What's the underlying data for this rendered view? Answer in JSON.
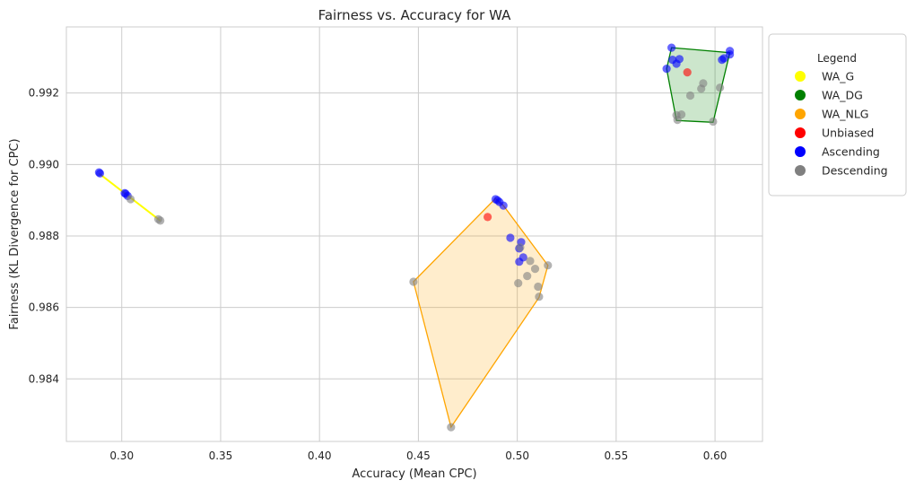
{
  "chart_data": {
    "type": "scatter",
    "title": "Fairness vs. Accuracy for WA",
    "xlabel": "Accuracy (Mean CPC)",
    "ylabel": "Fairness (KL Divergence for CPC)",
    "xlim": [
      0.272,
      0.624
    ],
    "ylim": [
      0.98225,
      0.99385
    ],
    "xticks": [
      0.3,
      0.35,
      0.4,
      0.45,
      0.5,
      0.55,
      0.6
    ],
    "xtick_labels": [
      "0.30",
      "0.35",
      "0.40",
      "0.45",
      "0.50",
      "0.55",
      "0.60"
    ],
    "yticks": [
      0.984,
      0.986,
      0.988,
      0.99,
      0.992
    ],
    "ytick_labels": [
      "0.984",
      "0.986",
      "0.988",
      "0.990",
      "0.992"
    ],
    "grid": true,
    "legend": {
      "title": "Legend",
      "placement": "outside-right",
      "entries": [
        {
          "label": "WA_G",
          "color": "#ffff00"
        },
        {
          "label": "WA_DG",
          "color": "#008000"
        },
        {
          "label": "WA_NLG",
          "color": "#ffa500"
        },
        {
          "label": "Unbiased",
          "color": "#ff0000"
        },
        {
          "label": "Ascending",
          "color": "#0000ff"
        },
        {
          "label": "Descending",
          "color": "#808080"
        }
      ]
    },
    "hulls": [
      {
        "name": "WA_G",
        "color": "#ffff00",
        "fill": false,
        "points": [
          [
            0.2885,
            0.98975
          ],
          [
            0.3195,
            0.98843
          ]
        ]
      },
      {
        "name": "WA_DG",
        "color": "#008000",
        "fill": true,
        "points": [
          [
            0.578,
            0.99327
          ],
          [
            0.6075,
            0.99313
          ],
          [
            0.599,
            0.99118
          ],
          [
            0.5805,
            0.99123
          ],
          [
            0.5755,
            0.99268
          ]
        ]
      },
      {
        "name": "WA_NLG",
        "color": "#ffa500",
        "fill": true,
        "points": [
          [
            0.489,
            0.98905
          ],
          [
            0.493,
            0.98885
          ],
          [
            0.5155,
            0.98718
          ],
          [
            0.511,
            0.98628
          ],
          [
            0.4665,
            0.98265
          ],
          [
            0.4475,
            0.98672
          ]
        ]
      }
    ],
    "series": [
      {
        "name": "Unbiased",
        "color": "#ff0000",
        "points": [
          [
            0.485,
            0.98853
          ],
          [
            0.586,
            0.99258
          ]
        ]
      },
      {
        "name": "Ascending",
        "color": "#0000ff",
        "points": [
          [
            0.2885,
            0.98978
          ],
          [
            0.289,
            0.98975
          ],
          [
            0.3015,
            0.9892
          ],
          [
            0.302,
            0.98918
          ],
          [
            0.303,
            0.98912
          ],
          [
            0.489,
            0.98903
          ],
          [
            0.49,
            0.989
          ],
          [
            0.491,
            0.98895
          ],
          [
            0.493,
            0.98885
          ],
          [
            0.4965,
            0.98795
          ],
          [
            0.502,
            0.98783
          ],
          [
            0.501,
            0.98765
          ],
          [
            0.503,
            0.9874
          ],
          [
            0.501,
            0.98728
          ],
          [
            0.578,
            0.99327
          ],
          [
            0.5785,
            0.99293
          ],
          [
            0.582,
            0.99295
          ],
          [
            0.5805,
            0.99282
          ],
          [
            0.5755,
            0.99268
          ],
          [
            0.6075,
            0.99318
          ],
          [
            0.6075,
            0.99308
          ],
          [
            0.6045,
            0.99297
          ],
          [
            0.6035,
            0.99293
          ]
        ]
      },
      {
        "name": "Descending",
        "color": "#808080",
        "points": [
          [
            0.3045,
            0.98903
          ],
          [
            0.3185,
            0.98847
          ],
          [
            0.3195,
            0.98843
          ],
          [
            0.4475,
            0.98672
          ],
          [
            0.4665,
            0.98265
          ],
          [
            0.5015,
            0.98768
          ],
          [
            0.5065,
            0.9873
          ],
          [
            0.509,
            0.98708
          ],
          [
            0.505,
            0.98688
          ],
          [
            0.5005,
            0.98668
          ],
          [
            0.5105,
            0.98658
          ],
          [
            0.511,
            0.9863
          ],
          [
            0.5155,
            0.98718
          ],
          [
            0.594,
            0.99227
          ],
          [
            0.593,
            0.99212
          ],
          [
            0.6025,
            0.99215
          ],
          [
            0.5875,
            0.99193
          ],
          [
            0.583,
            0.9914
          ],
          [
            0.5805,
            0.99138
          ],
          [
            0.581,
            0.99125
          ],
          [
            0.599,
            0.9912
          ]
        ]
      }
    ]
  }
}
